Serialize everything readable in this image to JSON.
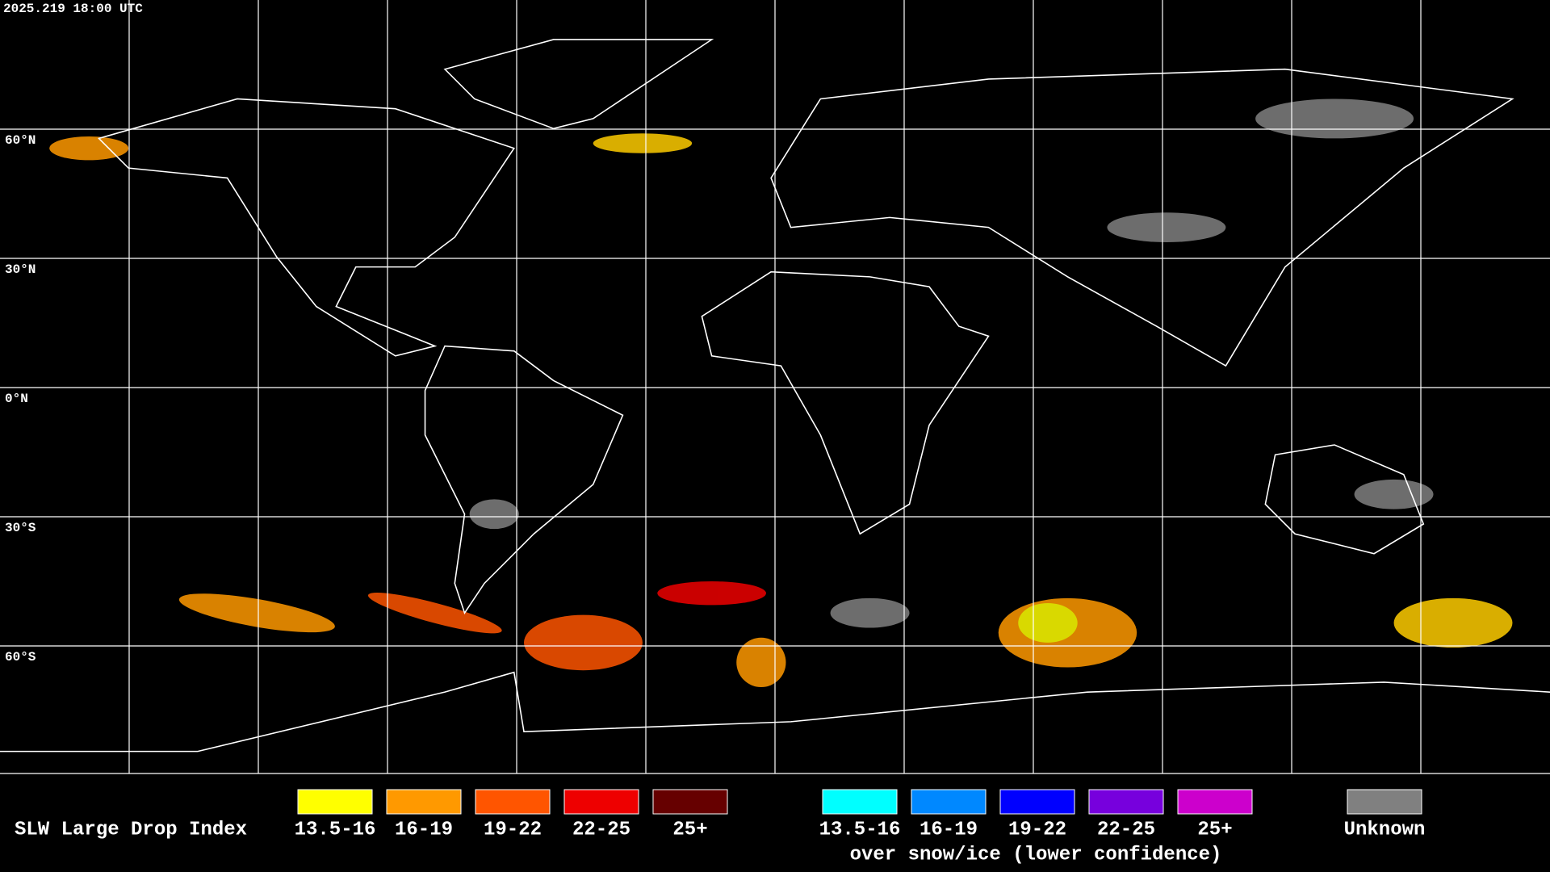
{
  "header": {
    "timestamp": "2025.219 18:00 UTC"
  },
  "map": {
    "lat_labels": [
      "60°N",
      "30°N",
      "0°N",
      "30°S",
      "60°S"
    ]
  },
  "legend": {
    "title": "SLW Large Drop Index",
    "liquid": [
      {
        "label": "13.5-16",
        "color": "#ffff00"
      },
      {
        "label": "16-19",
        "color": "#ff9900"
      },
      {
        "label": "19-22",
        "color": "#ff5500"
      },
      {
        "label": "22-25",
        "color": "#ee0000"
      },
      {
        "label": "25+",
        "color": "#660000"
      }
    ],
    "snow_ice": [
      {
        "label": "13.5-16",
        "color": "#00ffff"
      },
      {
        "label": "16-19",
        "color": "#0088ff"
      },
      {
        "label": "19-22",
        "color": "#0000ff"
      },
      {
        "label": "22-25",
        "color": "#7700dd"
      },
      {
        "label": "25+",
        "color": "#cc00cc"
      }
    ],
    "snow_ice_caption": "over snow/ice (lower confidence)",
    "unknown": {
      "label": "Unknown",
      "color": "#808080"
    }
  }
}
